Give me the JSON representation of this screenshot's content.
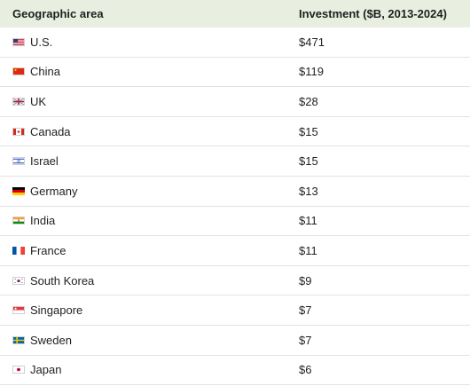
{
  "chart_data": {
    "type": "table",
    "columns": [
      "Geographic area",
      "Investment ($B, 2013-2024)"
    ],
    "rows": [
      {
        "area": "U.S.",
        "investment": "$471",
        "value": 471,
        "flag": "us-flag-icon"
      },
      {
        "area": "China",
        "investment": "$119",
        "value": 119,
        "flag": "china-flag-icon"
      },
      {
        "area": "UK",
        "investment": "$28",
        "value": 28,
        "flag": "uk-flag-icon"
      },
      {
        "area": "Canada",
        "investment": "$15",
        "value": 15,
        "flag": "canada-flag-icon"
      },
      {
        "area": "Israel",
        "investment": "$15",
        "value": 15,
        "flag": "israel-flag-icon"
      },
      {
        "area": "Germany",
        "investment": "$13",
        "value": 13,
        "flag": "germany-flag-icon"
      },
      {
        "area": "India",
        "investment": "$11",
        "value": 11,
        "flag": "india-flag-icon"
      },
      {
        "area": "France",
        "investment": "$11",
        "value": 11,
        "flag": "france-flag-icon"
      },
      {
        "area": "South Korea",
        "investment": "$9",
        "value": 9,
        "flag": "south-korea-flag-icon"
      },
      {
        "area": "Singapore",
        "investment": "$7",
        "value": 7,
        "flag": "singapore-flag-icon"
      },
      {
        "area": "Sweden",
        "investment": "$7",
        "value": 7,
        "flag": "sweden-flag-icon"
      },
      {
        "area": "Japan",
        "investment": "$6",
        "value": 6,
        "flag": "japan-flag-icon"
      }
    ]
  },
  "colors": {
    "header_bg": "#e8efe0",
    "row_border": "#e2e2e2"
  }
}
